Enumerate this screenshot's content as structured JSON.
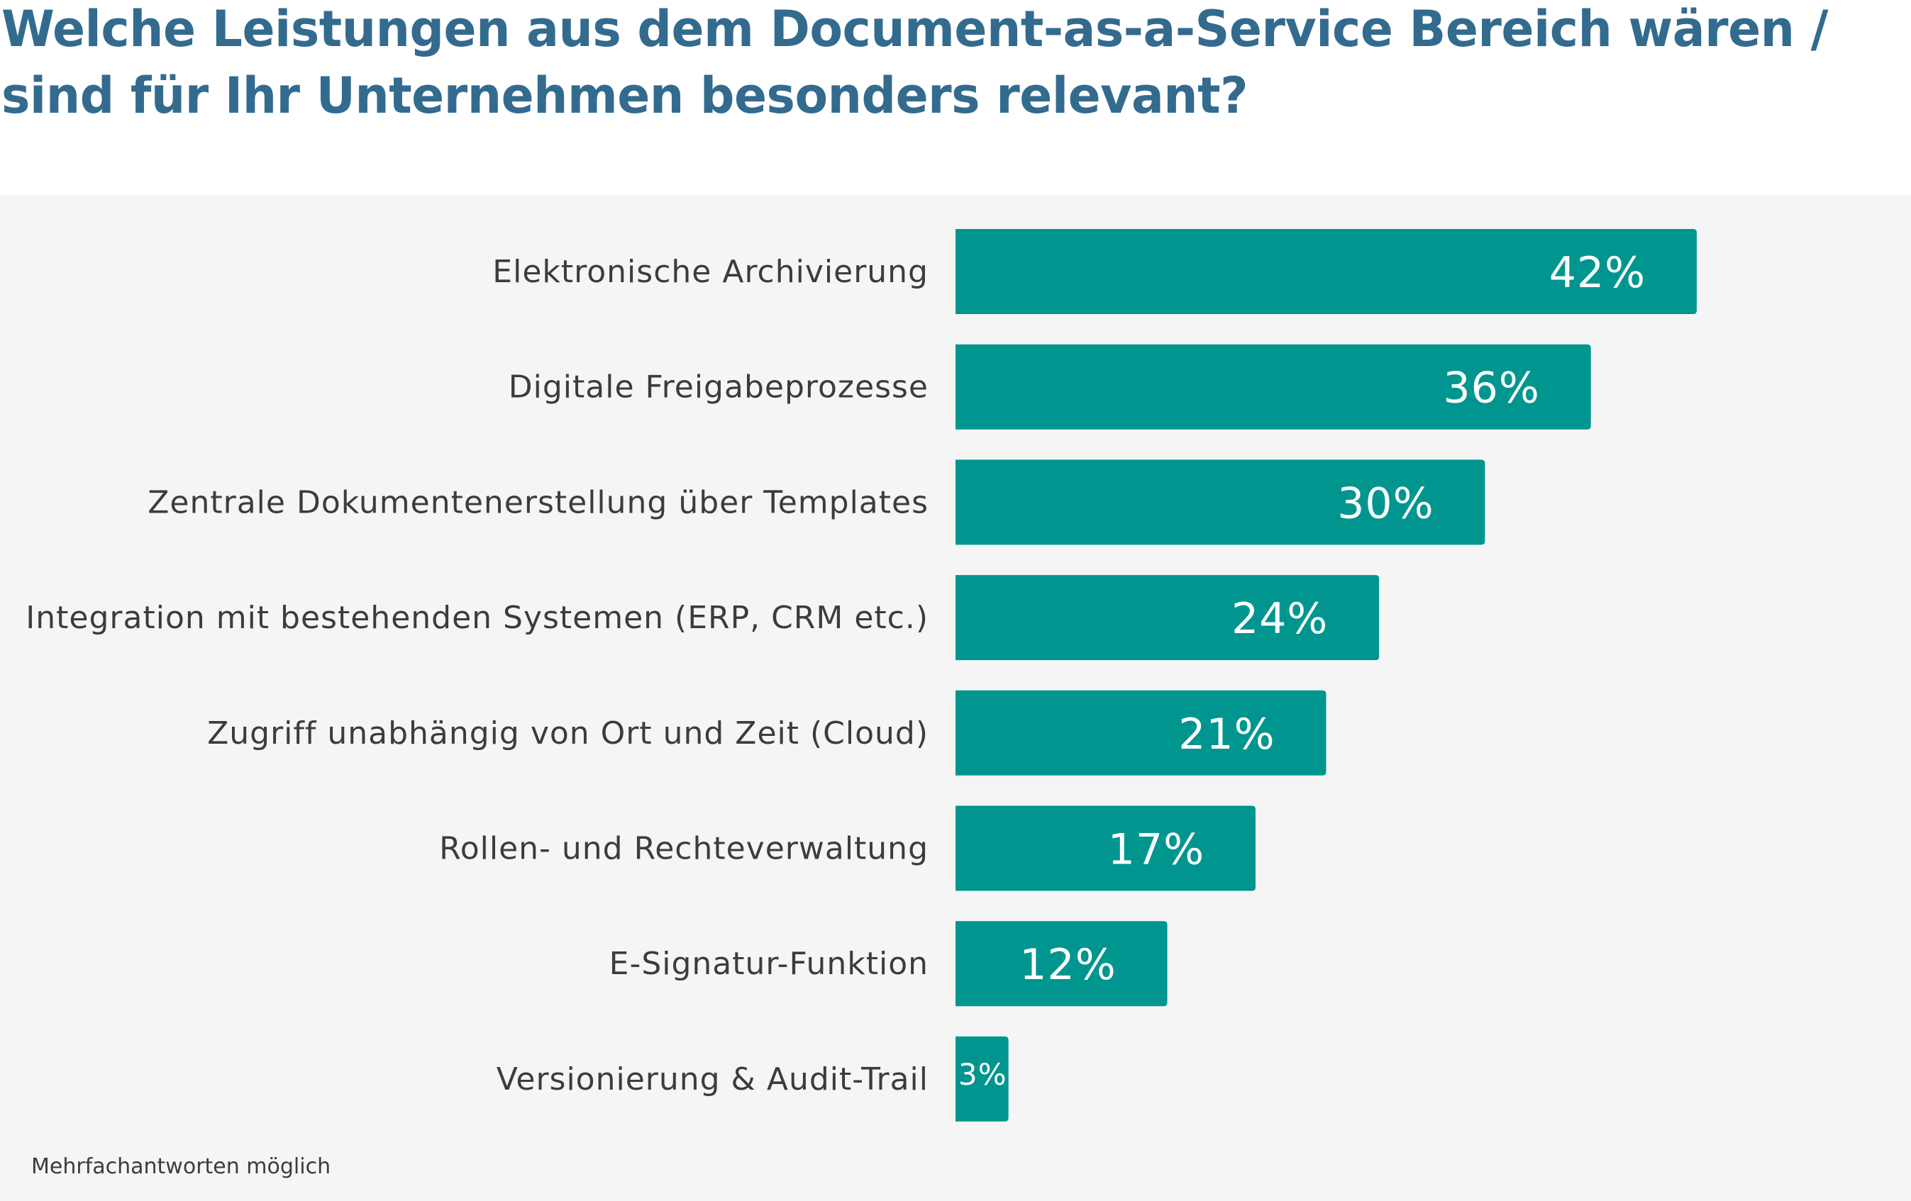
{
  "title_lines": [
    "Welche Leistungen aus dem Document-as-a-Service Bereich wären /",
    "sind für Ihr Unternehmen besonders relevant?"
  ],
  "footnote": "Mehrfachantworten möglich",
  "colors": {
    "title": "#336b8f",
    "bar": "#00968f",
    "panel_background": "#f5f5f5",
    "label_text": "#3c3c3c",
    "value_text": "#ffffff"
  },
  "chart_data": {
    "type": "bar",
    "orientation": "horizontal",
    "title": "Welche Leistungen aus dem Document-as-a-Service Bereich wären / sind für Ihr Unternehmen besonders relevant?",
    "xlabel": "",
    "ylabel": "",
    "unit": "%",
    "grid": false,
    "legend": "none",
    "xlim": [
      0,
      42
    ],
    "categories": [
      "Elektronische Archivierung",
      "Digitale Freigabeprozesse",
      "Zentrale Dokumentenerstellung über Templates",
      "Integration mit bestehenden Systemen (ERP, CRM etc.)",
      "Zugriff unabhängig von Ort und Zeit (Cloud)",
      "Rollen- und Rechteverwaltung",
      "E-Signatur-Funktion",
      "Versionierung & Audit-Trail"
    ],
    "values": [
      42,
      36,
      30,
      24,
      21,
      17,
      12,
      3
    ],
    "value_labels": [
      "42%",
      "36%",
      "30%",
      "24%",
      "21%",
      "17%",
      "12%",
      "3%"
    ],
    "annotations": [
      "Mehrfachantworten möglich"
    ]
  }
}
